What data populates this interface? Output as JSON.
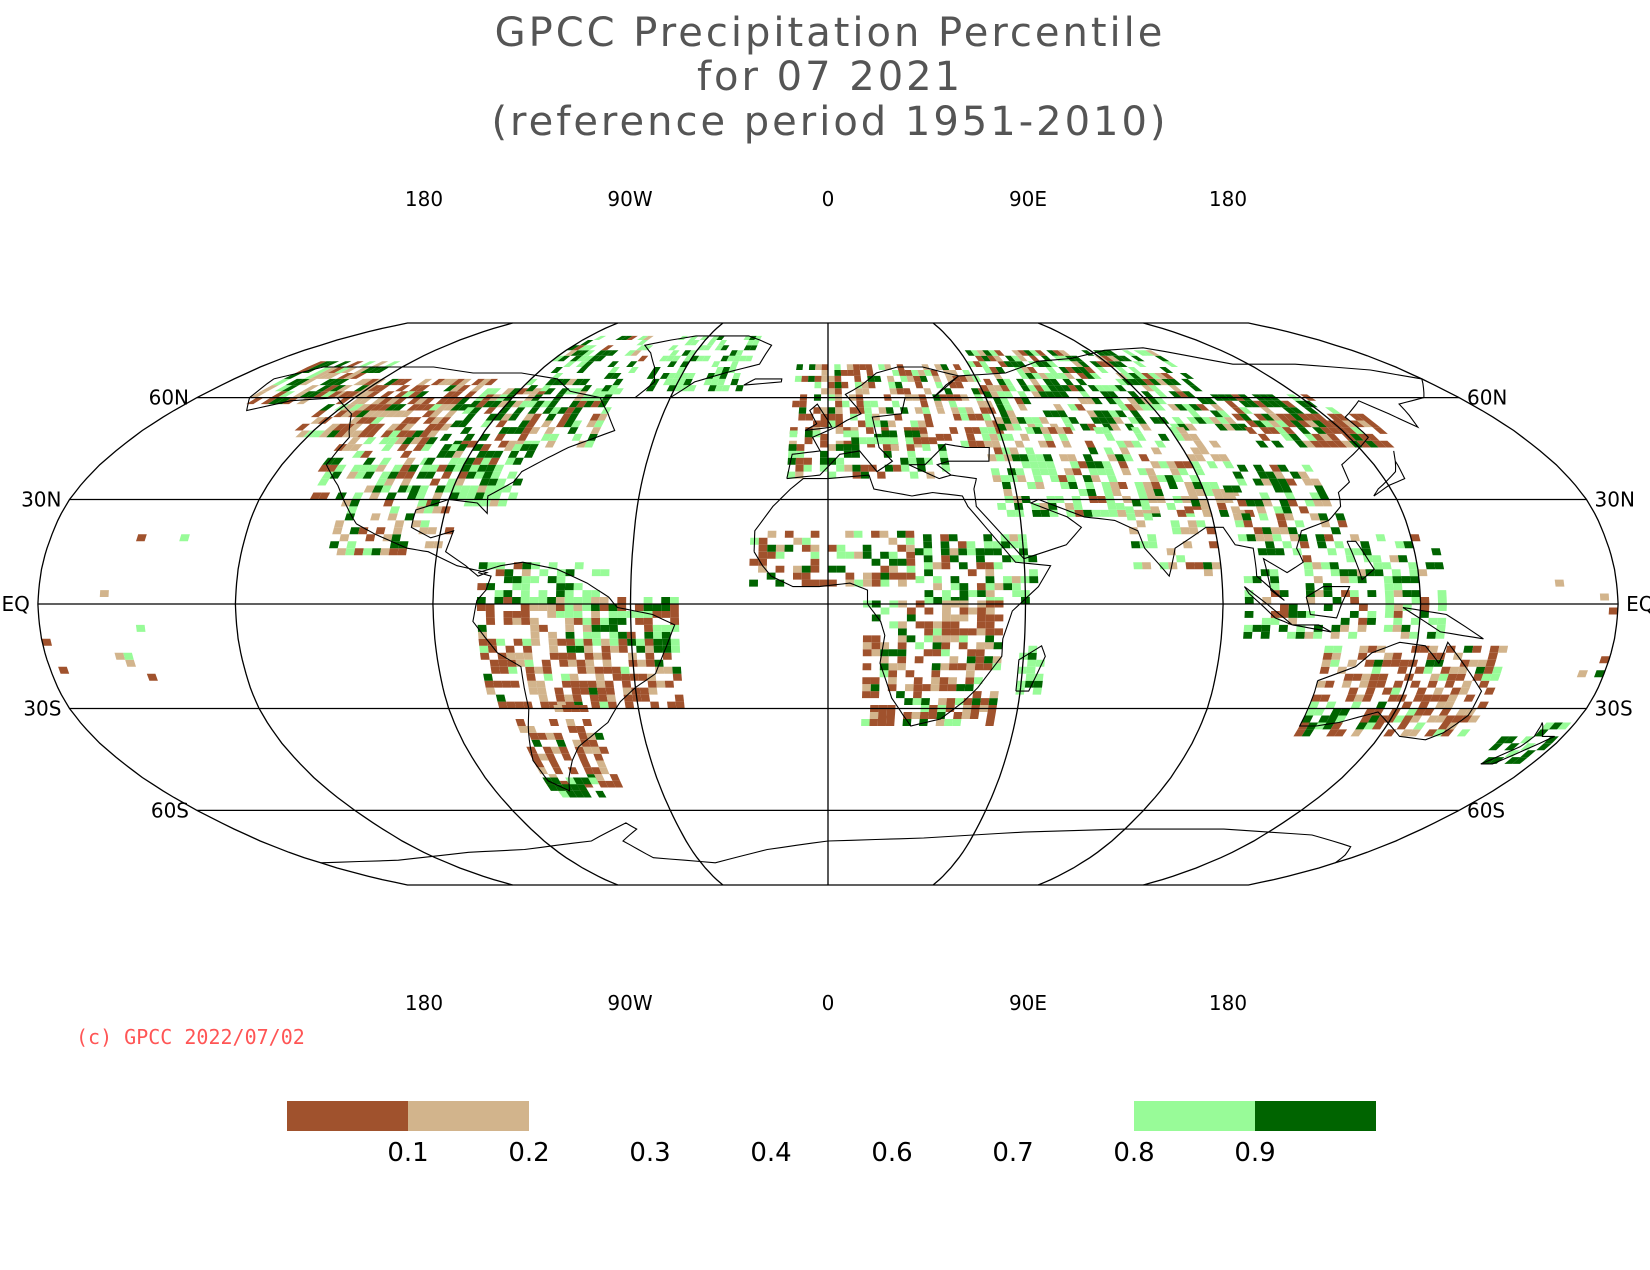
{
  "title": {
    "line1": "GPCC Precipitation Percentile",
    "line2": "for 07 2021",
    "line3": "(reference period 1951-2010)"
  },
  "map": {
    "projection": "Robinson",
    "graticule_lon_step_deg": 45,
    "graticule_lat_deg": [
      -60,
      -30,
      0,
      30,
      60
    ],
    "top_lon_labels": [
      "180",
      "90W",
      "0",
      "90E",
      "180"
    ],
    "bottom_lon_labels": [
      "180",
      "90W",
      "0",
      "90E",
      "180"
    ],
    "lat_labels_left": [
      "60N",
      "30N",
      "EQ",
      "30S",
      "60S"
    ],
    "lat_labels_right": [
      "60N",
      "30N",
      "EQ",
      "30S",
      "60S"
    ]
  },
  "copyright": "(c) GPCC 2022/07/02",
  "legend": {
    "tick_labels": [
      "0.1",
      "0.2",
      "0.3",
      "0.4",
      "0.6",
      "0.7",
      "0.8",
      "0.9"
    ],
    "classes": [
      {
        "range": "< 0.1",
        "color": "#a0522d"
      },
      {
        "range": "0.1 - 0.2",
        "color": "#d2b48c"
      },
      {
        "range": "0.8 - 0.9",
        "color": "#98fb98"
      },
      {
        "range": "> 0.9",
        "color": "#006400"
      }
    ]
  },
  "colors": {
    "very_dry": "#a0522d",
    "dry": "#d2b48c",
    "wet": "#98fb98",
    "very_wet": "#006400"
  }
}
